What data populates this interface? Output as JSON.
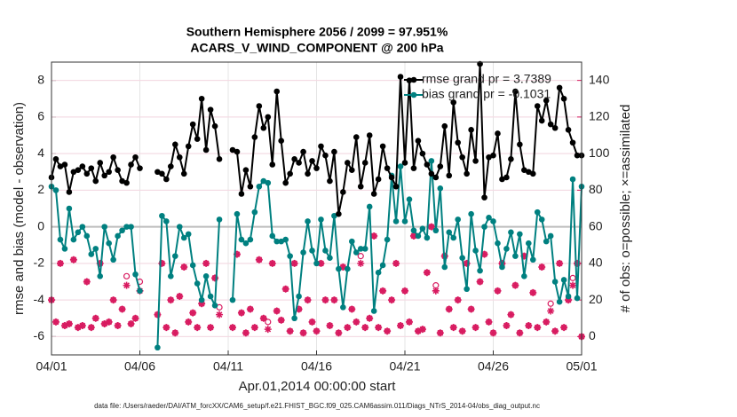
{
  "chart_data": {
    "type": "line",
    "title": [
      "Southern Hemisphere 2056 / 2099 = 97.951%",
      "ACARS_V_WIND_COMPONENT @ 200 hPa"
    ],
    "xlabel": "Apr.01,2014 00:00:00 start",
    "ylabel": "rmse and bias (model - observation)",
    "y2label": "# of obs: o=possible; ×=assimilated",
    "footnote": "data file: /Users/raeder/DAI/ATM_forcXX/CAM6_setup/f.e21.FHIST_BGC.f09_025.CAM6assim.011/Diags_NTrS_2014-04/obs_diag_output.nc",
    "xlim": [
      0,
      30
    ],
    "xticks": [
      {
        "value": 0,
        "label": "04/01"
      },
      {
        "value": 5,
        "label": "04/06"
      },
      {
        "value": 10,
        "label": "04/11"
      },
      {
        "value": 15,
        "label": "04/16"
      },
      {
        "value": 20,
        "label": "04/21"
      },
      {
        "value": 25,
        "label": "04/26"
      },
      {
        "value": 30,
        "label": "05/01"
      }
    ],
    "ylim": [
      -7,
      9
    ],
    "yticks": [
      -6,
      -4,
      -2,
      0,
      2,
      4,
      6,
      8
    ],
    "y2lim": [
      -10,
      150
    ],
    "y2ticks": [
      0,
      20,
      40,
      60,
      80,
      100,
      120,
      140
    ],
    "y2color": "#d81b60",
    "grid": true,
    "zero_line": true,
    "legend": "upper right",
    "legend_text_color": "#1040ff",
    "x": [
      0,
      0.25,
      0.5,
      0.75,
      1,
      1.25,
      1.5,
      1.75,
      2,
      2.25,
      2.5,
      2.75,
      3,
      3.25,
      3.5,
      3.75,
      4,
      4.25,
      4.5,
      4.75,
      5,
      5.25,
      5.5,
      5.75,
      6,
      6.25,
      6.5,
      6.75,
      7,
      7.25,
      7.5,
      7.75,
      8,
      8.25,
      8.5,
      8.75,
      9,
      9.25,
      9.5,
      9.75,
      10,
      10.25,
      10.5,
      10.75,
      11,
      11.25,
      11.5,
      11.75,
      12,
      12.25,
      12.5,
      12.75,
      13,
      13.25,
      13.5,
      13.75,
      14,
      14.25,
      14.5,
      14.75,
      15,
      15.25,
      15.5,
      15.75,
      16,
      16.25,
      16.5,
      16.75,
      17,
      17.25,
      17.5,
      17.75,
      18,
      18.25,
      18.5,
      18.75,
      19,
      19.25,
      19.5,
      19.75,
      20,
      20.25,
      20.5,
      20.75,
      21,
      21.25,
      21.5,
      21.75,
      22,
      22.25,
      22.5,
      22.75,
      23,
      23.25,
      23.5,
      23.75,
      24,
      24.25,
      24.5,
      24.75,
      25,
      25.25,
      25.5,
      25.75,
      26,
      26.25,
      26.5,
      26.75,
      27,
      27.25,
      27.5,
      27.75,
      28,
      28.25,
      28.5,
      28.75,
      29,
      29.25,
      29.5,
      29.75,
      30
    ],
    "series": [
      {
        "name": "rmse grand pr = 3.7389",
        "color": "#000000",
        "line": true,
        "marker": "dot",
        "values": [
          2.7,
          3.7,
          3.3,
          3.4,
          1.9,
          3.0,
          3.1,
          3.3,
          2.9,
          3.2,
          2.5,
          3.5,
          2.8,
          3.0,
          3.8,
          3.1,
          2.5,
          2.4,
          3.4,
          3.8,
          3.2,
          null,
          null,
          null,
          3.0,
          2.9,
          2.6,
          3.3,
          4.5,
          3.8,
          2.9,
          4.4,
          5.6,
          4.8,
          7.0,
          4.2,
          6.4,
          5.5,
          3.7,
          null,
          null,
          4.2,
          4.1,
          1.8,
          3.1,
          2.2,
          4.9,
          6.6,
          5.4,
          6.0,
          3.4,
          7.4,
          4.7,
          2.4,
          2.9,
          3.7,
          3.5,
          4.1,
          2.9,
          3.6,
          3.2,
          4.4,
          3.9,
          2.5,
          4.1,
          0.7,
          1.9,
          3.5,
          3.1,
          4.9,
          2.2,
          3.5,
          5.0,
          1.8,
          2.6,
          4.4,
          3.2,
          2.7,
          2.2,
          8.2,
          3.5,
          8.0,
          3.2,
          4.7,
          4.0,
          3.4,
          2.9,
          2.7,
          3.3,
          5.5,
          2.8,
          6.8,
          4.6,
          3.8,
          2.9,
          5.3,
          3.6,
          8.9,
          1.6,
          3.8,
          3.9,
          5.1,
          2.6,
          2.7,
          3.7,
          7.4,
          4.5,
          3.1,
          3.0,
          2.9,
          6.6,
          5.8,
          6.9,
          5.6,
          5.4,
          7.6,
          7.0,
          5.3,
          4.6,
          3.9,
          3.9
        ]
      },
      {
        "name": "bias grand pr = -0.1031",
        "color": "#008080",
        "line": true,
        "marker": "dot",
        "values": [
          2.2,
          2.0,
          -0.7,
          -1.2,
          1.0,
          -0.7,
          -0.3,
          0.0,
          -0.5,
          -1.5,
          -1.2,
          -2.7,
          0.0,
          -0.9,
          -1.8,
          -0.5,
          -0.2,
          0.0,
          0.0,
          -2.6,
          -3.5,
          null,
          null,
          null,
          -6.6,
          0.6,
          0.3,
          -2.7,
          -1.6,
          0.0,
          -0.6,
          -0.4,
          -2.1,
          -3.1,
          -4.0,
          -2.7,
          -3.8,
          -4.3,
          0.4,
          null,
          null,
          -4.0,
          0.7,
          -0.7,
          -0.9,
          -0.7,
          0.8,
          2.2,
          2.5,
          2.4,
          -0.5,
          -0.8,
          -0.8,
          -0.7,
          -1.6,
          -5.0,
          -3.8,
          -1.4,
          0.3,
          -1.3,
          -2.0,
          0.4,
          -1.3,
          -1.7,
          0.6,
          -2.3,
          -4.4,
          -2.3,
          -0.8,
          -1.4,
          -1.2,
          -1.2,
          1.1,
          -4.6,
          -2.5,
          -2.1,
          -0.7,
          2.8,
          0.3,
          3.3,
          0.3,
          1.5,
          -0.2,
          -0.5,
          -0.1,
          -0.6,
          3.6,
          -0.2,
          2.1,
          -2.2,
          -0.3,
          -0.6,
          0.4,
          -1.7,
          -3.4,
          0.7,
          -1.3,
          -2.4,
          0.0,
          0.5,
          0.3,
          -0.9,
          -2.2,
          -1.2,
          -0.3,
          -1.6,
          -0.4,
          -2.7,
          -0.9,
          -1.8,
          0.8,
          0.4,
          -0.8,
          -0.5,
          -3.0,
          -4.1,
          -2.9,
          -3.8,
          2.6,
          -3.9,
          2.2
        ]
      },
      {
        "color": "#d81b60",
        "axis": "y2",
        "line": false,
        "marker": "circle",
        "values": [
          20,
          8,
          40,
          6,
          7,
          42,
          5,
          6,
          30,
          5,
          10,
          40,
          7,
          8,
          20,
          6,
          15,
          33,
          7,
          10,
          30,
          null,
          null,
          null,
          12,
          40,
          5,
          20,
          2,
          22,
          38,
          8,
          13,
          5,
          18,
          40,
          5,
          32,
          16,
          null,
          null,
          5,
          45,
          13,
          2,
          15,
          5,
          42,
          10,
          8,
          40,
          14,
          9,
          26,
          3,
          40,
          15,
          2,
          20,
          8,
          3,
          40,
          20,
          6,
          20,
          2,
          38,
          5,
          15,
          8,
          44,
          5,
          10,
          55,
          5,
          25,
          3,
          20,
          40,
          6,
          25,
          8,
          55,
          3,
          4,
          35,
          60,
          28,
          2,
          44,
          15,
          5,
          20,
          3,
          40,
          15,
          5,
          30,
          45,
          8,
          2,
          25,
          40,
          6,
          12,
          28,
          2,
          44,
          6,
          24,
          5,
          38,
          8,
          18,
          3,
          40,
          5,
          20,
          32,
          40,
          0
        ]
      },
      {
        "color": "#d81b60",
        "axis": "y2",
        "line": false,
        "marker": "asterisk",
        "values": [
          20,
          8,
          40,
          6,
          7,
          42,
          5,
          6,
          30,
          5,
          10,
          40,
          7,
          8,
          20,
          6,
          15,
          28,
          7,
          10,
          25,
          null,
          null,
          null,
          12,
          40,
          5,
          20,
          2,
          22,
          38,
          8,
          13,
          5,
          18,
          40,
          5,
          32,
          12,
          null,
          null,
          5,
          45,
          13,
          2,
          15,
          5,
          42,
          10,
          4,
          40,
          14,
          9,
          26,
          3,
          40,
          15,
          2,
          20,
          8,
          3,
          40,
          20,
          6,
          20,
          2,
          38,
          5,
          15,
          8,
          40,
          5,
          10,
          55,
          5,
          25,
          3,
          20,
          40,
          6,
          25,
          8,
          55,
          3,
          4,
          35,
          60,
          25,
          2,
          44,
          15,
          5,
          20,
          3,
          40,
          15,
          5,
          30,
          45,
          8,
          2,
          25,
          40,
          6,
          12,
          28,
          2,
          44,
          6,
          24,
          5,
          38,
          8,
          14,
          3,
          40,
          5,
          20,
          28,
          40,
          0
        ]
      }
    ]
  }
}
